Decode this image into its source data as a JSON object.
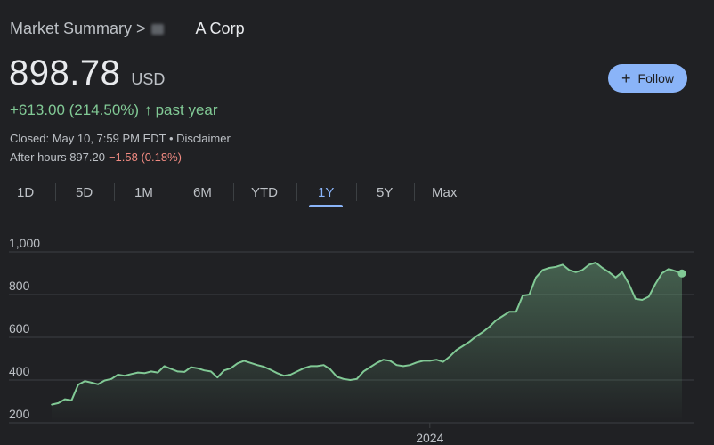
{
  "breadcrumb": {
    "root": "Market Summary",
    "separator": ">",
    "company": "A Corp"
  },
  "quote": {
    "price": "898.78",
    "currency": "USD",
    "change_text": "+613.00 (214.50%)",
    "change_arrow": "↑",
    "period": "past year",
    "closed_text": "Closed: May 10, 7:59 PM EDT • Disclaimer",
    "after_hours_label": "After hours 897.20",
    "after_hours_change": "−1.58 (0.18%)"
  },
  "follow_button": {
    "plus": "+",
    "label": "Follow"
  },
  "ranges": {
    "items": [
      "1D",
      "5D",
      "1M",
      "6M",
      "YTD",
      "1Y",
      "5Y",
      "Max"
    ],
    "active": "1Y"
  },
  "colors": {
    "background": "#202124",
    "positive": "#81c995",
    "negative": "#f28b82",
    "accent": "#8ab4f8",
    "line": "#81c995",
    "grid": "#3c4043"
  },
  "chart_data": {
    "type": "area",
    "title": "",
    "xlabel": "",
    "ylabel": "",
    "ylim": [
      200,
      1000
    ],
    "y_ticks": [
      200,
      400,
      600,
      800,
      1000
    ],
    "y_tick_labels": [
      "200",
      "400",
      "600",
      "800",
      "1,000"
    ],
    "x_tick_labels": [
      "2024"
    ],
    "x_tick_positions": [
      0.6
    ],
    "grid": true,
    "series": [
      {
        "values": [
          285,
          292,
          310,
          305,
          378,
          395,
          388,
          380,
          398,
          405,
          425,
          420,
          428,
          435,
          432,
          440,
          435,
          465,
          452,
          440,
          438,
          460,
          455,
          445,
          440,
          412,
          445,
          455,
          478,
          490,
          480,
          470,
          462,
          448,
          432,
          420,
          425,
          440,
          455,
          465,
          465,
          470,
          450,
          415,
          405,
          400,
          405,
          440,
          460,
          480,
          495,
          490,
          470,
          465,
          470,
          482,
          490,
          490,
          495,
          485,
          510,
          540,
          560,
          580,
          605,
          625,
          650,
          680,
          700,
          720,
          720,
          795,
          800,
          880,
          915,
          925,
          930,
          940,
          915,
          905,
          915,
          940,
          950,
          925,
          905,
          880,
          905,
          850,
          780,
          775,
          790,
          850,
          900,
          920,
          910,
          898.78
        ]
      }
    ],
    "last_point": 898.78
  }
}
